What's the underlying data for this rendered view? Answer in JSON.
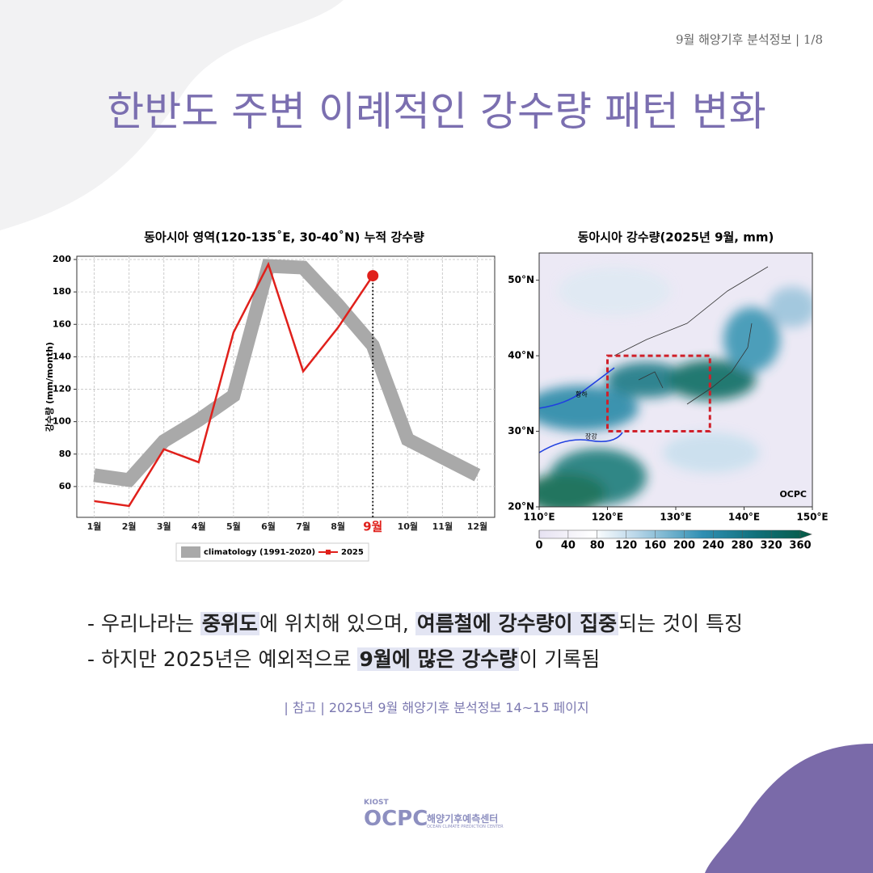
{
  "header": {
    "page_label": "9월 해양기후 분석정보 | 1/8",
    "title": "한반도 주변 이례적인 강수량 패턴 변화"
  },
  "chart_data": [
    {
      "type": "line",
      "title": "동아시아 영역(120-135˚E, 30-40˚N) 누적 강수량",
      "y_label": "강수량 (mm/month)",
      "categories": [
        "1월",
        "2월",
        "3월",
        "4월",
        "5월",
        "6월",
        "7월",
        "8월",
        "9월",
        "10월",
        "11월",
        "12월"
      ],
      "series": [
        {
          "name": "climatology (1991-2020)",
          "color": "#a9a9a9",
          "values": [
            67,
            64,
            88,
            101,
            116,
            196,
            195,
            172,
            147,
            89,
            78,
            67
          ]
        },
        {
          "name": "2025",
          "color": "#e0201b",
          "values": [
            51,
            48,
            83,
            75,
            155,
            197,
            131,
            158,
            190,
            null,
            null,
            null
          ]
        }
      ],
      "ylim": [
        41,
        202
      ],
      "yticks": [
        60,
        80,
        100,
        120,
        140,
        160,
        180,
        200
      ],
      "grid": true,
      "x_label_highlight": {
        "index": 8,
        "color": "#e0201b"
      }
    },
    {
      "type": "map",
      "title": "동아시아 강수량(2025년 9월, mm)",
      "xlim": [
        110,
        150
      ],
      "xticks": [
        {
          "value": 110,
          "label": "110°E"
        },
        {
          "value": 120,
          "label": "120°E"
        },
        {
          "value": 130,
          "label": "130°E"
        },
        {
          "value": 140,
          "label": "140°E"
        },
        {
          "value": 150,
          "label": "150°E"
        }
      ],
      "ylim": [
        20,
        53.6
      ],
      "yticks": [
        {
          "value": 20,
          "label": "20°N"
        },
        {
          "value": 30,
          "label": "30°N"
        },
        {
          "value": 40,
          "label": "40°N"
        },
        {
          "value": 50,
          "label": "50°N"
        }
      ],
      "region": {
        "lon": [
          120,
          135
        ],
        "lat": [
          30,
          40
        ],
        "color": "#d0202a"
      },
      "labels": {
        "river1": "황하",
        "river2": "장강",
        "credit": "OCPC"
      },
      "colorbar": {
        "lim": [
          0,
          360
        ],
        "ticks": [
          0,
          40,
          80,
          120,
          160,
          200,
          240,
          280,
          320,
          360
        ]
      }
    }
  ],
  "bullets": [
    [
      {
        "text": "- 우리나라는 "
      },
      {
        "text": "중위도",
        "bold": true
      },
      {
        "text": "에 위치해 있으며, "
      },
      {
        "text": "여름철에 강수량이 집중",
        "bold": true
      },
      {
        "text": "되는 것이 특징"
      }
    ],
    [
      {
        "text": "- 하지만 2025년은 예외적으로 "
      },
      {
        "text": "9월에 많은 강수량",
        "bold": true
      },
      {
        "text": "이 기록됨"
      }
    ]
  ],
  "reference": "| 참고 |  2025년 9월 해양기후 분석정보 14~15 페이지",
  "logo": {
    "org": "KIOST",
    "name": "OCPC",
    "name_ko": "해양기후예측센터",
    "name_en": "OCEAN CLIMATE PREDICTION CENTER"
  }
}
